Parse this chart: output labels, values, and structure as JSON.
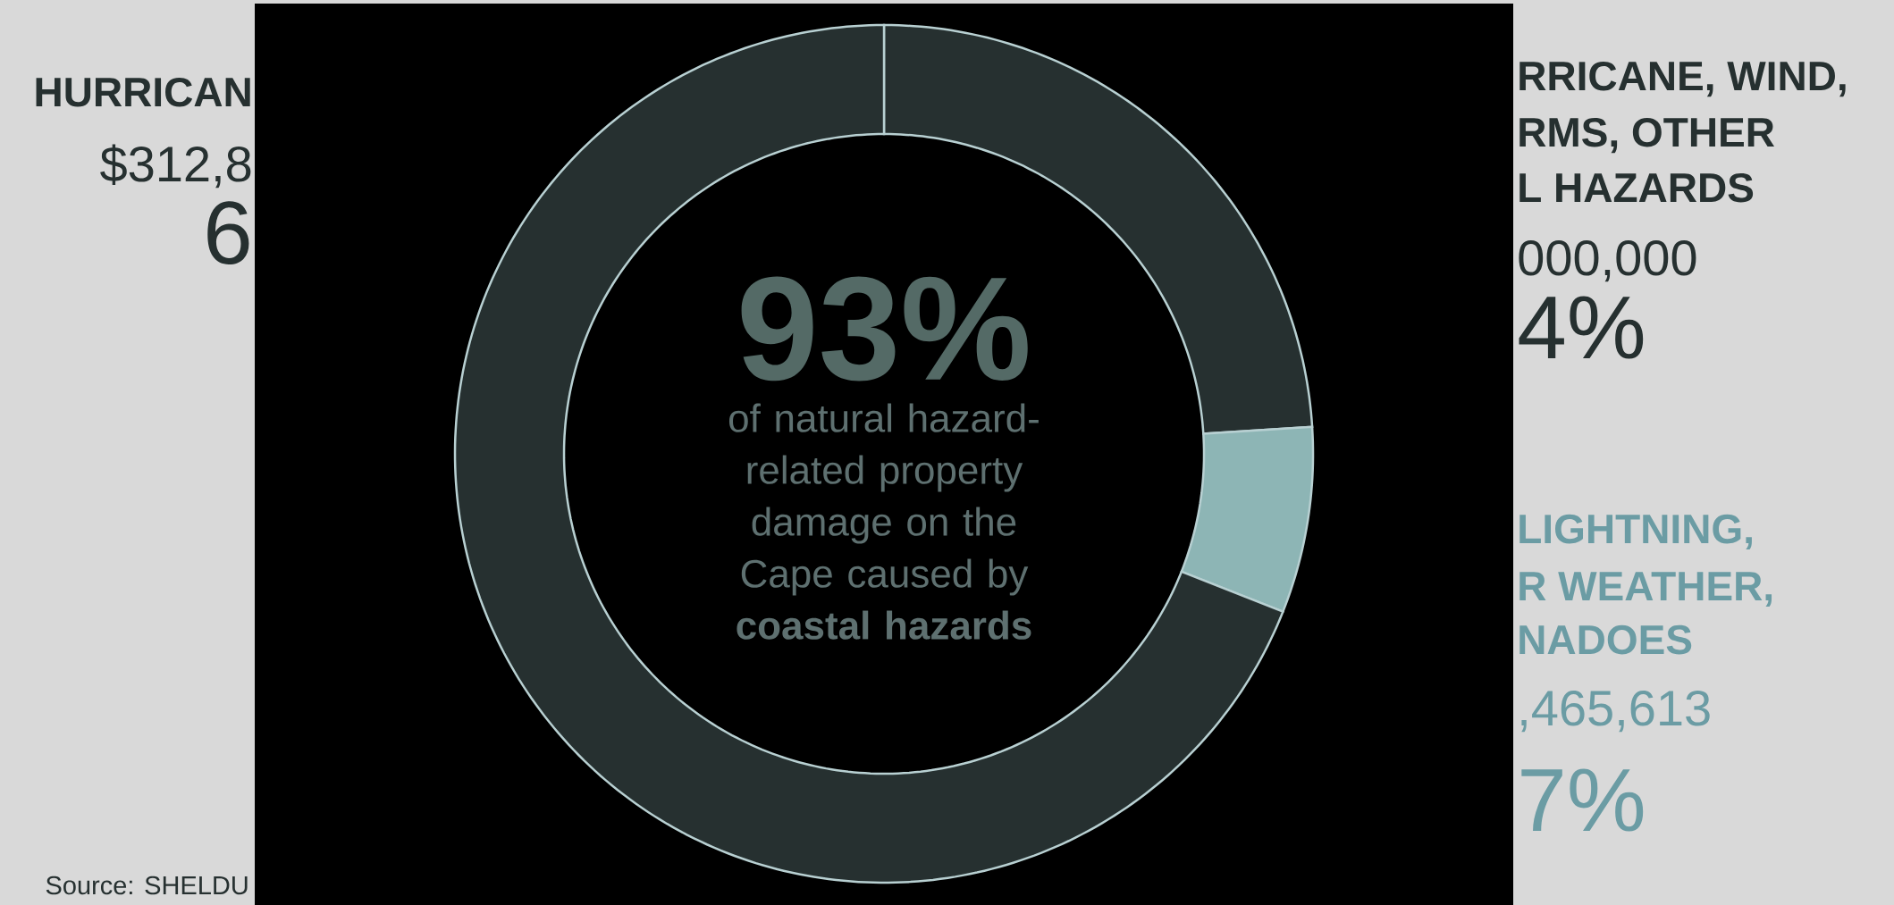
{
  "chart_data": {
    "type": "donut",
    "title": "93%",
    "subtitle": "of natural hazard-related property damage on the Cape caused by **coastal hazards**",
    "categories": [
      null,
      null,
      null
    ],
    "values": [
      24,
      7,
      69
    ],
    "colors": [
      "#263030",
      "#8db5b5",
      "#263030"
    ],
    "annotations": [
      "HURRICAN",
      "$312,8",
      "6",
      "RRICANE, WIND,",
      "RMS, OTHER",
      "L HAZARDS",
      "000,000",
      "4%",
      "LIGHTNING,",
      "R WEATHER,",
      "NADOES",
      ",465,613",
      "7%",
      "Source:   SHELDU"
    ]
  }
}
